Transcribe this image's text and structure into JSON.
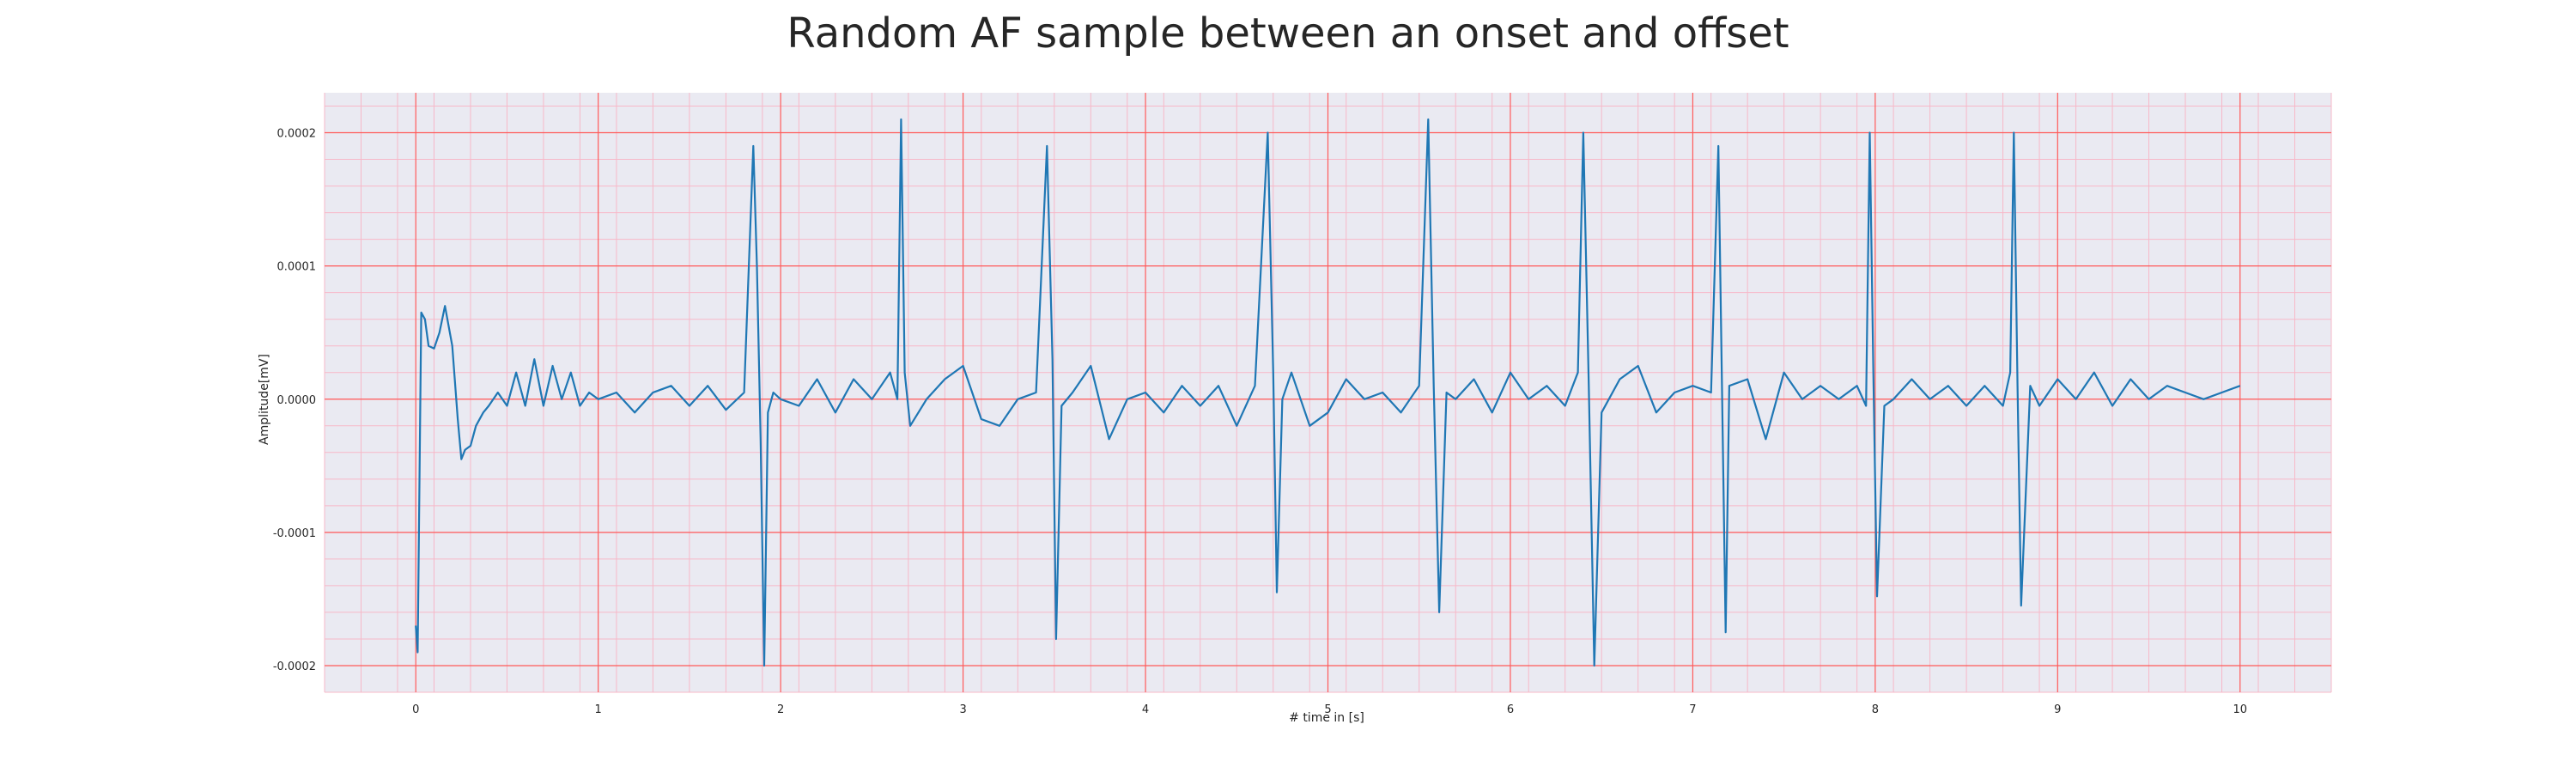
{
  "chart_data": {
    "type": "line",
    "title": "Random AF sample between an onset and offset",
    "xlabel": "# time in [s]",
    "ylabel": "Amplitude[mV]",
    "xlim": [
      -0.5,
      10.5
    ],
    "ylim": [
      -0.00022,
      0.00023
    ],
    "x_ticks": [
      0,
      1,
      2,
      3,
      4,
      5,
      6,
      7,
      8,
      9,
      10
    ],
    "x_tick_labels": [
      "0",
      "1",
      "2",
      "3",
      "4",
      "5",
      "6",
      "7",
      "8",
      "9",
      "10"
    ],
    "y_ticks": [
      -0.0002,
      -0.0001,
      0.0,
      0.0001,
      0.0002
    ],
    "y_tick_labels": [
      "-0.0002",
      "-0.0001",
      "0.0000",
      "0.0001",
      "0.0002"
    ],
    "grid": true,
    "minor_grid": true,
    "colors": {
      "plot_background": "#eaeaf2",
      "major_grid": "#ff5a5a",
      "minor_grid": "#f7b8c8",
      "line": "#1f77b4"
    },
    "series": [
      {
        "x": [
          0.0,
          0.01,
          0.03,
          0.05,
          0.07,
          0.1,
          0.13,
          0.16,
          0.2,
          0.23,
          0.25,
          0.27,
          0.3,
          0.33,
          0.37,
          0.4,
          0.45,
          0.5,
          0.55,
          0.6,
          0.65,
          0.7,
          0.75,
          0.8,
          0.85,
          0.9,
          0.95,
          1.0,
          1.1,
          1.2,
          1.3,
          1.4,
          1.5,
          1.6,
          1.7,
          1.8,
          1.85,
          1.87,
          1.89,
          1.91,
          1.93,
          1.96,
          2.0,
          2.1,
          2.2,
          2.3,
          2.4,
          2.5,
          2.6,
          2.64,
          2.66,
          2.68,
          2.71,
          2.8,
          2.9,
          3.0,
          3.1,
          3.2,
          3.3,
          3.4,
          3.46,
          3.49,
          3.51,
          3.54,
          3.6,
          3.7,
          3.8,
          3.9,
          4.0,
          4.1,
          4.2,
          4.3,
          4.4,
          4.5,
          4.6,
          4.67,
          4.7,
          4.72,
          4.75,
          4.8,
          4.9,
          5.0,
          5.1,
          5.2,
          5.3,
          5.4,
          5.5,
          5.55,
          5.58,
          5.61,
          5.65,
          5.7,
          5.8,
          5.9,
          6.0,
          6.1,
          6.2,
          6.3,
          6.37,
          6.4,
          6.43,
          6.46,
          6.5,
          6.6,
          6.7,
          6.8,
          6.9,
          7.0,
          7.1,
          7.14,
          7.16,
          7.18,
          7.2,
          7.3,
          7.4,
          7.5,
          7.6,
          7.7,
          7.8,
          7.9,
          7.95,
          7.97,
          7.99,
          8.01,
          8.05,
          8.1,
          8.2,
          8.3,
          8.4,
          8.5,
          8.6,
          8.7,
          8.74,
          8.76,
          8.78,
          8.8,
          8.85,
          8.9,
          9.0,
          9.1,
          9.2,
          9.3,
          9.4,
          9.5,
          9.6,
          9.7,
          9.8,
          9.9,
          10.0
        ],
        "y": [
          -0.00017,
          -0.00019,
          6.5e-05,
          6e-05,
          4e-05,
          3.8e-05,
          5e-05,
          7e-05,
          4e-05,
          -1.5e-05,
          -4.5e-05,
          -3.8e-05,
          -3.5e-05,
          -2e-05,
          -1e-05,
          -5e-06,
          5e-06,
          -5e-06,
          2e-05,
          -5e-06,
          3e-05,
          -5e-06,
          2.5e-05,
          0.0,
          2e-05,
          -5e-06,
          5e-06,
          0.0,
          5e-06,
          -1e-05,
          5e-06,
          1e-05,
          -5e-06,
          1e-05,
          -8e-06,
          5e-06,
          0.00019,
          0.0001,
          -3e-05,
          -0.0002,
          -1e-05,
          5e-06,
          0.0,
          -5e-06,
          1.5e-05,
          -1e-05,
          1.5e-05,
          0.0,
          2e-05,
          0.0,
          0.00021,
          2e-05,
          -2e-05,
          0.0,
          1.5e-05,
          2.5e-05,
          -1.5e-05,
          -2e-05,
          0.0,
          5e-06,
          0.00019,
          3e-05,
          -0.00018,
          -5e-06,
          5e-06,
          2.5e-05,
          -3e-05,
          0.0,
          5e-06,
          -1e-05,
          1e-05,
          -5e-06,
          1e-05,
          -2e-05,
          1e-05,
          0.0002,
          2e-05,
          -0.000145,
          0.0,
          2e-05,
          -2e-05,
          -1e-05,
          1.5e-05,
          0.0,
          5e-06,
          -1e-05,
          1e-05,
          0.00021,
          1e-05,
          -0.00016,
          5e-06,
          0.0,
          1.5e-05,
          -1e-05,
          2e-05,
          0.0,
          1e-05,
          -5e-06,
          2e-05,
          0.0002,
          1e-05,
          -0.0002,
          -1e-05,
          1.5e-05,
          2.5e-05,
          -1e-05,
          5e-06,
          1e-05,
          5e-06,
          0.00019,
          1e-05,
          -0.000175,
          1e-05,
          1.5e-05,
          -3e-05,
          2e-05,
          0.0,
          1e-05,
          0.0,
          1e-05,
          -5e-06,
          0.0002,
          2e-05,
          -0.000148,
          -5e-06,
          0.0,
          1.5e-05,
          0.0,
          1e-05,
          -5e-06,
          1e-05,
          -5e-06,
          2e-05,
          0.0002,
          1e-05,
          -0.000155,
          1e-05,
          -5e-06,
          1.5e-05,
          0.0,
          2e-05,
          -5e-06,
          1.5e-05,
          0.0,
          1e-05,
          5e-06,
          0.0,
          5e-06,
          1e-05
        ]
      }
    ]
  }
}
